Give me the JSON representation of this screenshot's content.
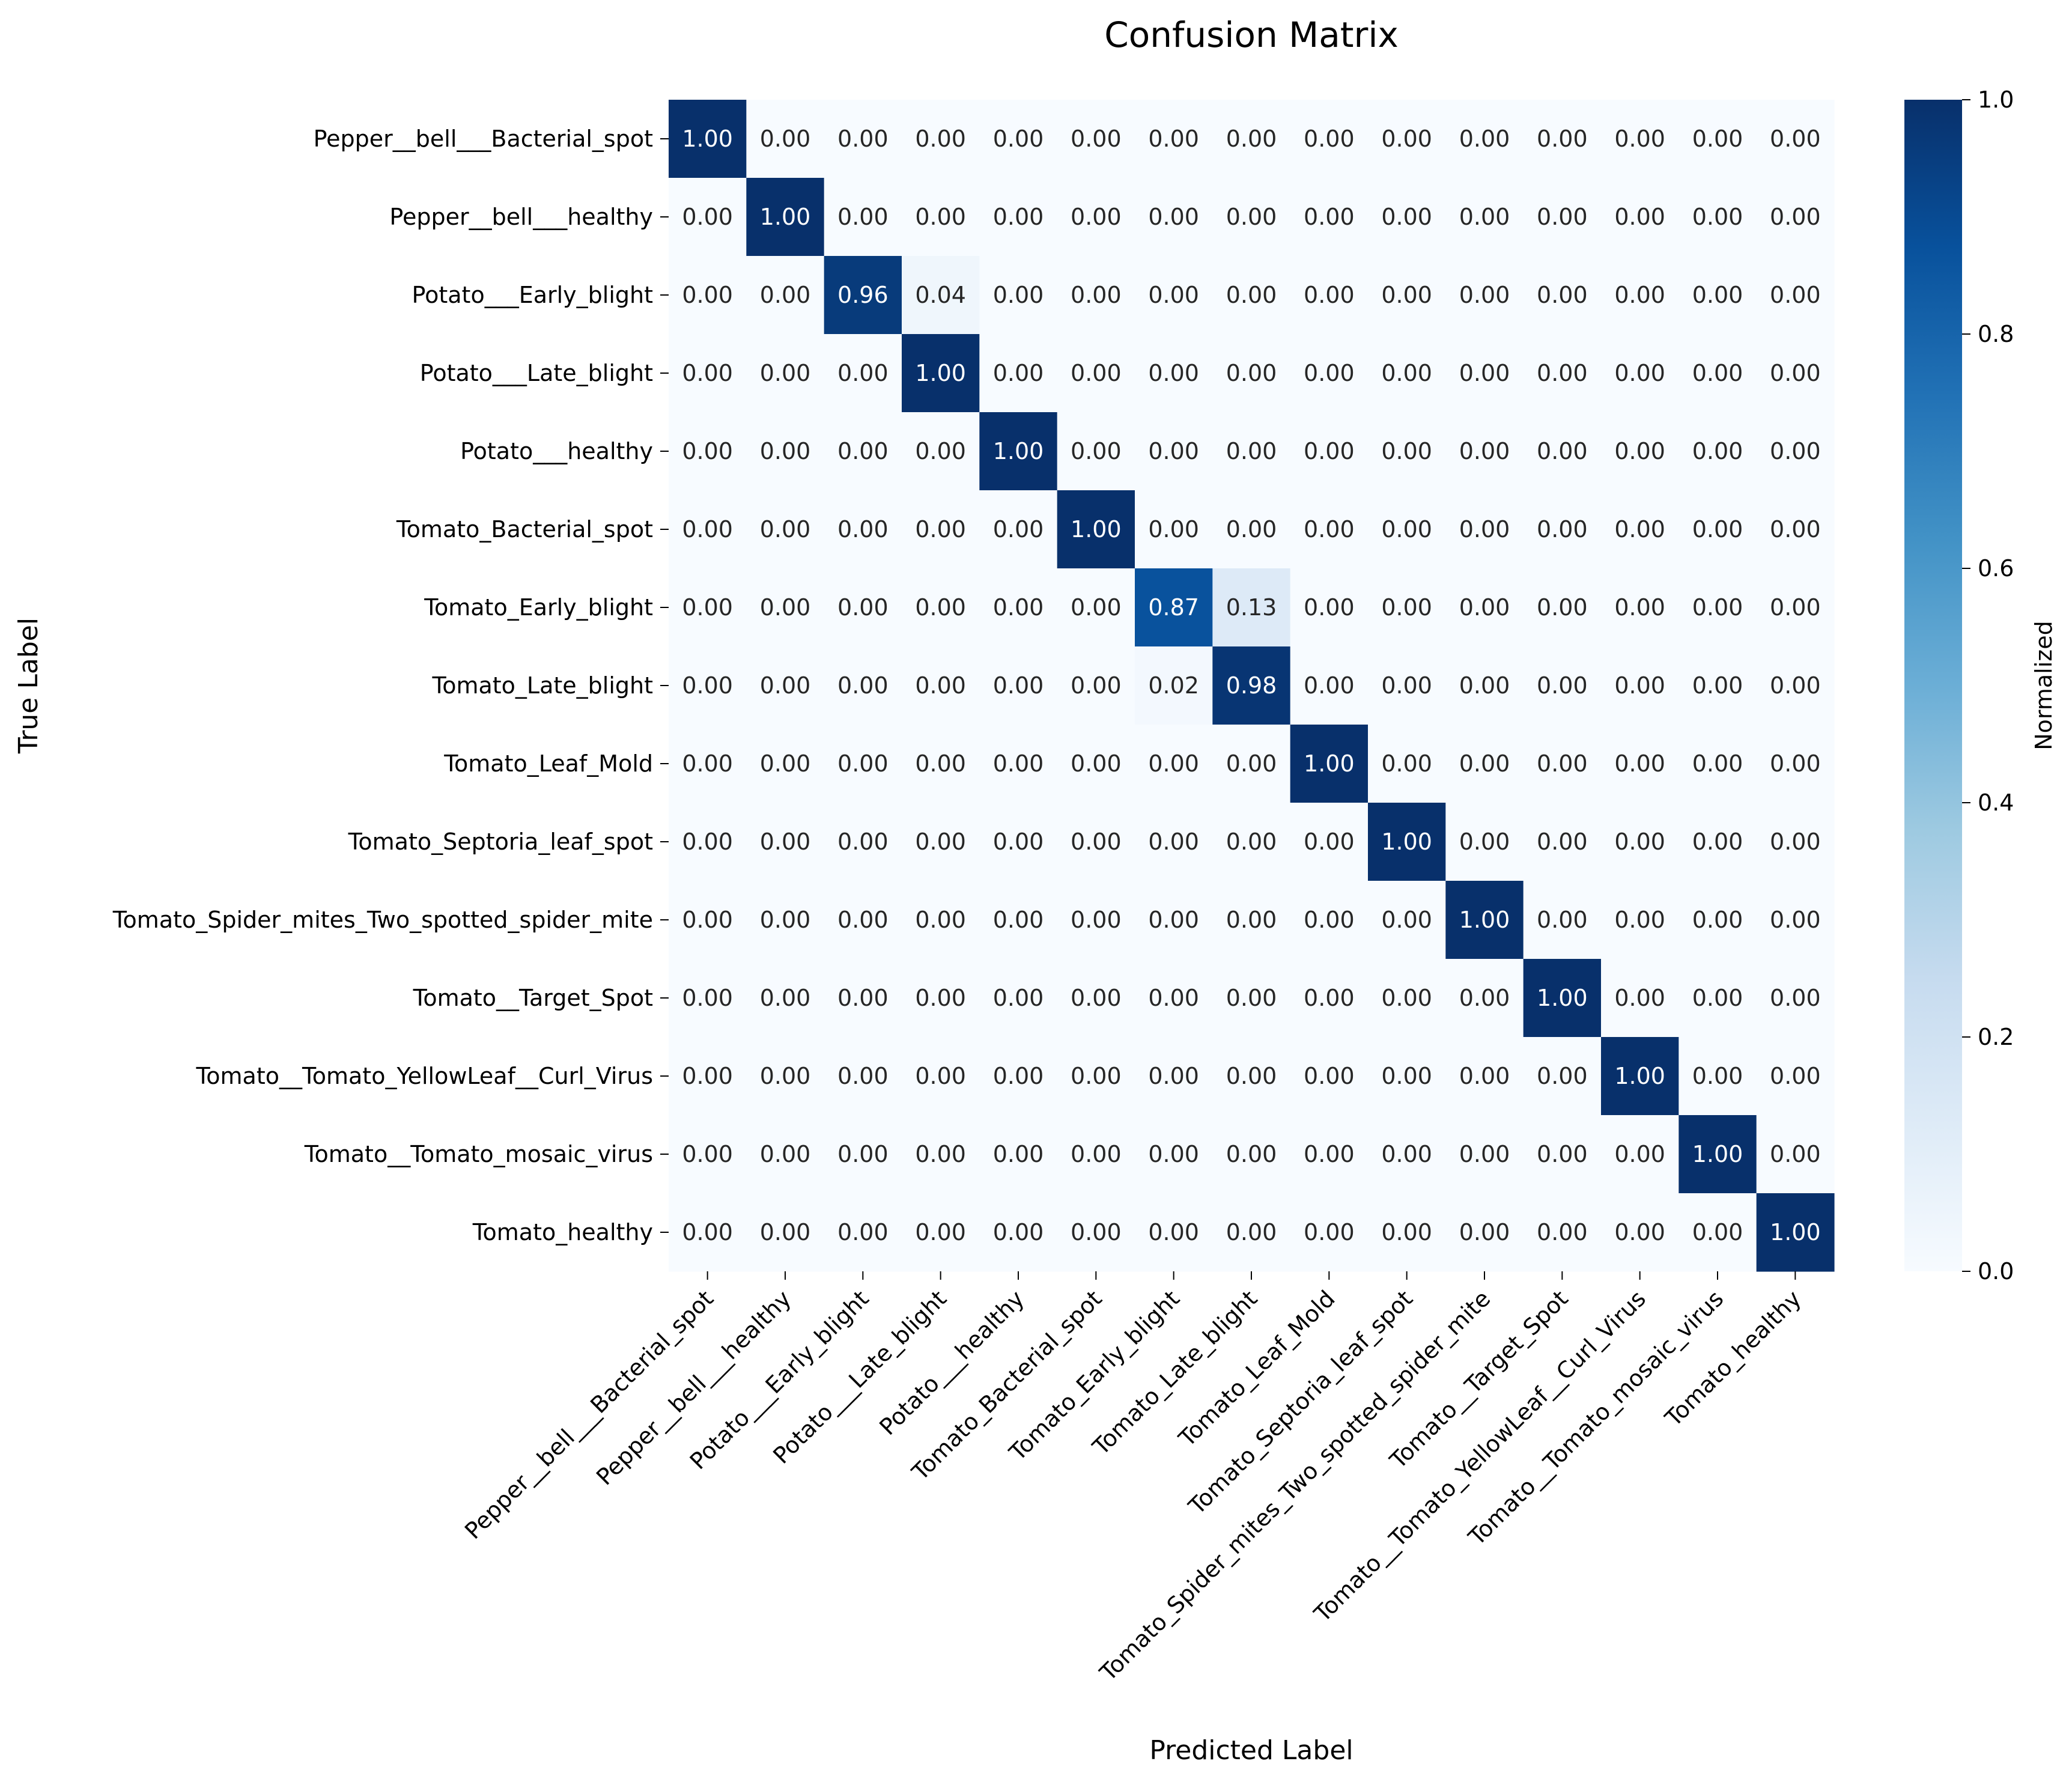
{
  "chart_data": {
    "type": "heatmap",
    "title": "Confusion Matrix",
    "xlabel": "Predicted Label",
    "ylabel": "True Label",
    "categories": [
      "Pepper__bell___Bacterial_spot",
      "Pepper__bell___healthy",
      "Potato___Early_blight",
      "Potato___Late_blight",
      "Potato___healthy",
      "Tomato_Bacterial_spot",
      "Tomato_Early_blight",
      "Tomato_Late_blight",
      "Tomato_Leaf_Mold",
      "Tomato_Septoria_leaf_spot",
      "Tomato_Spider_mites_Two_spotted_spider_mite",
      "Tomato__Target_Spot",
      "Tomato__Tomato_YellowLeaf__Curl_Virus",
      "Tomato__Tomato_mosaic_virus",
      "Tomato_healthy"
    ],
    "values": [
      [
        1.0,
        0,
        0,
        0,
        0,
        0,
        0,
        0,
        0,
        0,
        0,
        0,
        0,
        0,
        0
      ],
      [
        0,
        1.0,
        0,
        0,
        0,
        0,
        0,
        0,
        0,
        0,
        0,
        0,
        0,
        0,
        0
      ],
      [
        0,
        0,
        0.96,
        0.04,
        0,
        0,
        0,
        0,
        0,
        0,
        0,
        0,
        0,
        0,
        0
      ],
      [
        0,
        0,
        0,
        1.0,
        0,
        0,
        0,
        0,
        0,
        0,
        0,
        0,
        0,
        0,
        0
      ],
      [
        0,
        0,
        0,
        0,
        1.0,
        0,
        0,
        0,
        0,
        0,
        0,
        0,
        0,
        0,
        0
      ],
      [
        0,
        0,
        0,
        0,
        0,
        1.0,
        0,
        0,
        0,
        0,
        0,
        0,
        0,
        0,
        0
      ],
      [
        0,
        0,
        0,
        0,
        0,
        0,
        0.87,
        0.13,
        0,
        0,
        0,
        0,
        0,
        0,
        0
      ],
      [
        0,
        0,
        0,
        0,
        0,
        0,
        0.02,
        0.98,
        0,
        0,
        0,
        0,
        0,
        0,
        0
      ],
      [
        0,
        0,
        0,
        0,
        0,
        0,
        0,
        0,
        1.0,
        0,
        0,
        0,
        0,
        0,
        0
      ],
      [
        0,
        0,
        0,
        0,
        0,
        0,
        0,
        0,
        0,
        1.0,
        0,
        0,
        0,
        0,
        0
      ],
      [
        0,
        0,
        0,
        0,
        0,
        0,
        0,
        0,
        0,
        0,
        1.0,
        0,
        0,
        0,
        0
      ],
      [
        0,
        0,
        0,
        0,
        0,
        0,
        0,
        0,
        0,
        0,
        0,
        1.0,
        0,
        0,
        0
      ],
      [
        0,
        0,
        0,
        0,
        0,
        0,
        0,
        0,
        0,
        0,
        0,
        0,
        1.0,
        0,
        0
      ],
      [
        0,
        0,
        0,
        0,
        0,
        0,
        0,
        0,
        0,
        0,
        0,
        0,
        0,
        1.0,
        0
      ],
      [
        0,
        0,
        0,
        0,
        0,
        0,
        0,
        0,
        0,
        0,
        0,
        0,
        0,
        0,
        1.0
      ]
    ],
    "value_format": "2 decimals",
    "colormap": "Blues",
    "colorbar": {
      "label": "Normalized",
      "range": [
        0,
        1
      ],
      "ticks": [
        "0.0",
        "0.2",
        "0.4",
        "0.6",
        "0.8",
        "1.0"
      ]
    }
  }
}
